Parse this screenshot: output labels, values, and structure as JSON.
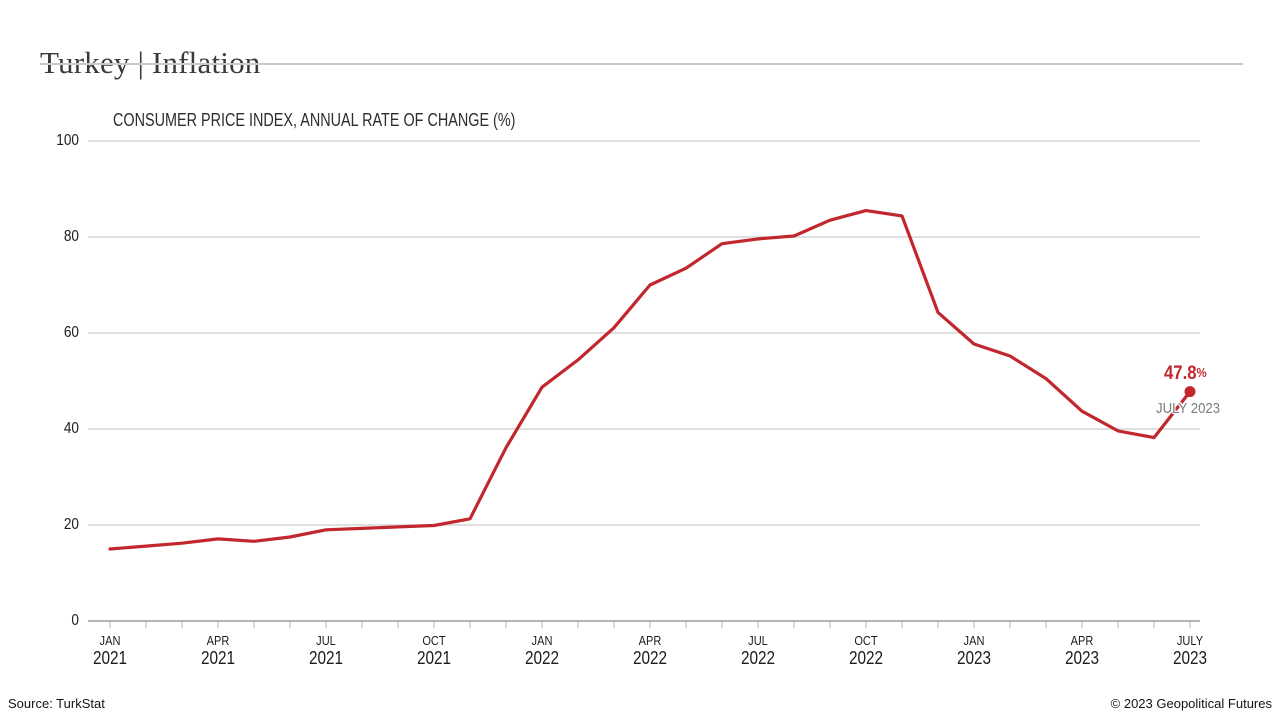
{
  "header": {
    "title": "Turkey | Inflation"
  },
  "chart_data": {
    "type": "line",
    "title": "CONSUMER PRICE INDEX, ANNUAL RATE OF CHANGE (%)",
    "xlabel": "",
    "ylabel": "",
    "ylim": [
      0,
      100
    ],
    "yticks": [
      0,
      20,
      40,
      60,
      80,
      100
    ],
    "grid": true,
    "legend": "none",
    "line_color": "#c1272d",
    "grid_color": "#d5d5d5",
    "axis_color": "#b5b5b5",
    "x": [
      "JAN 2021",
      "FEB 2021",
      "MAR 2021",
      "APR 2021",
      "MAY 2021",
      "JUN 2021",
      "JUL 2021",
      "AUG 2021",
      "SEP 2021",
      "OCT 2021",
      "NOV 2021",
      "DEC 2021",
      "JAN 2022",
      "FEB 2022",
      "MAR 2022",
      "APR 2022",
      "MAY 2022",
      "JUN 2022",
      "JUL 2022",
      "AUG 2022",
      "SEP 2022",
      "OCT 2022",
      "NOV 2022",
      "DEC 2022",
      "JAN 2023",
      "FEB 2023",
      "MAR 2023",
      "APR 2023",
      "MAY 2023",
      "JUN 2023",
      "JUL 2023"
    ],
    "values": [
      15.0,
      15.6,
      16.2,
      17.1,
      16.6,
      17.5,
      19.0,
      19.3,
      19.6,
      19.9,
      21.3,
      36.1,
      48.7,
      54.4,
      61.1,
      70.0,
      73.5,
      78.6,
      79.6,
      80.2,
      83.5,
      85.5,
      84.4,
      64.3,
      57.7,
      55.2,
      50.5,
      43.7,
      39.6,
      38.2,
      47.8
    ],
    "x_tick_labels": [
      {
        "index": 0,
        "month": "JAN",
        "year": "2021"
      },
      {
        "index": 3,
        "month": "APR",
        "year": "2021"
      },
      {
        "index": 6,
        "month": "JUL",
        "year": "2021"
      },
      {
        "index": 9,
        "month": "OCT",
        "year": "2021"
      },
      {
        "index": 12,
        "month": "JAN",
        "year": "2022"
      },
      {
        "index": 15,
        "month": "APR",
        "year": "2022"
      },
      {
        "index": 18,
        "month": "JUL",
        "year": "2022"
      },
      {
        "index": 21,
        "month": "OCT",
        "year": "2022"
      },
      {
        "index": 24,
        "month": "JAN",
        "year": "2023"
      },
      {
        "index": 27,
        "month": "APR",
        "year": "2023"
      },
      {
        "index": 30,
        "month": "JULY",
        "year": "2023"
      }
    ],
    "annotation": {
      "value": "47.8",
      "unit": "%",
      "label": "JULY 2023"
    }
  },
  "footer": {
    "source": "Source: TurkStat",
    "copyright": "© 2023 Geopolitical Futures"
  }
}
